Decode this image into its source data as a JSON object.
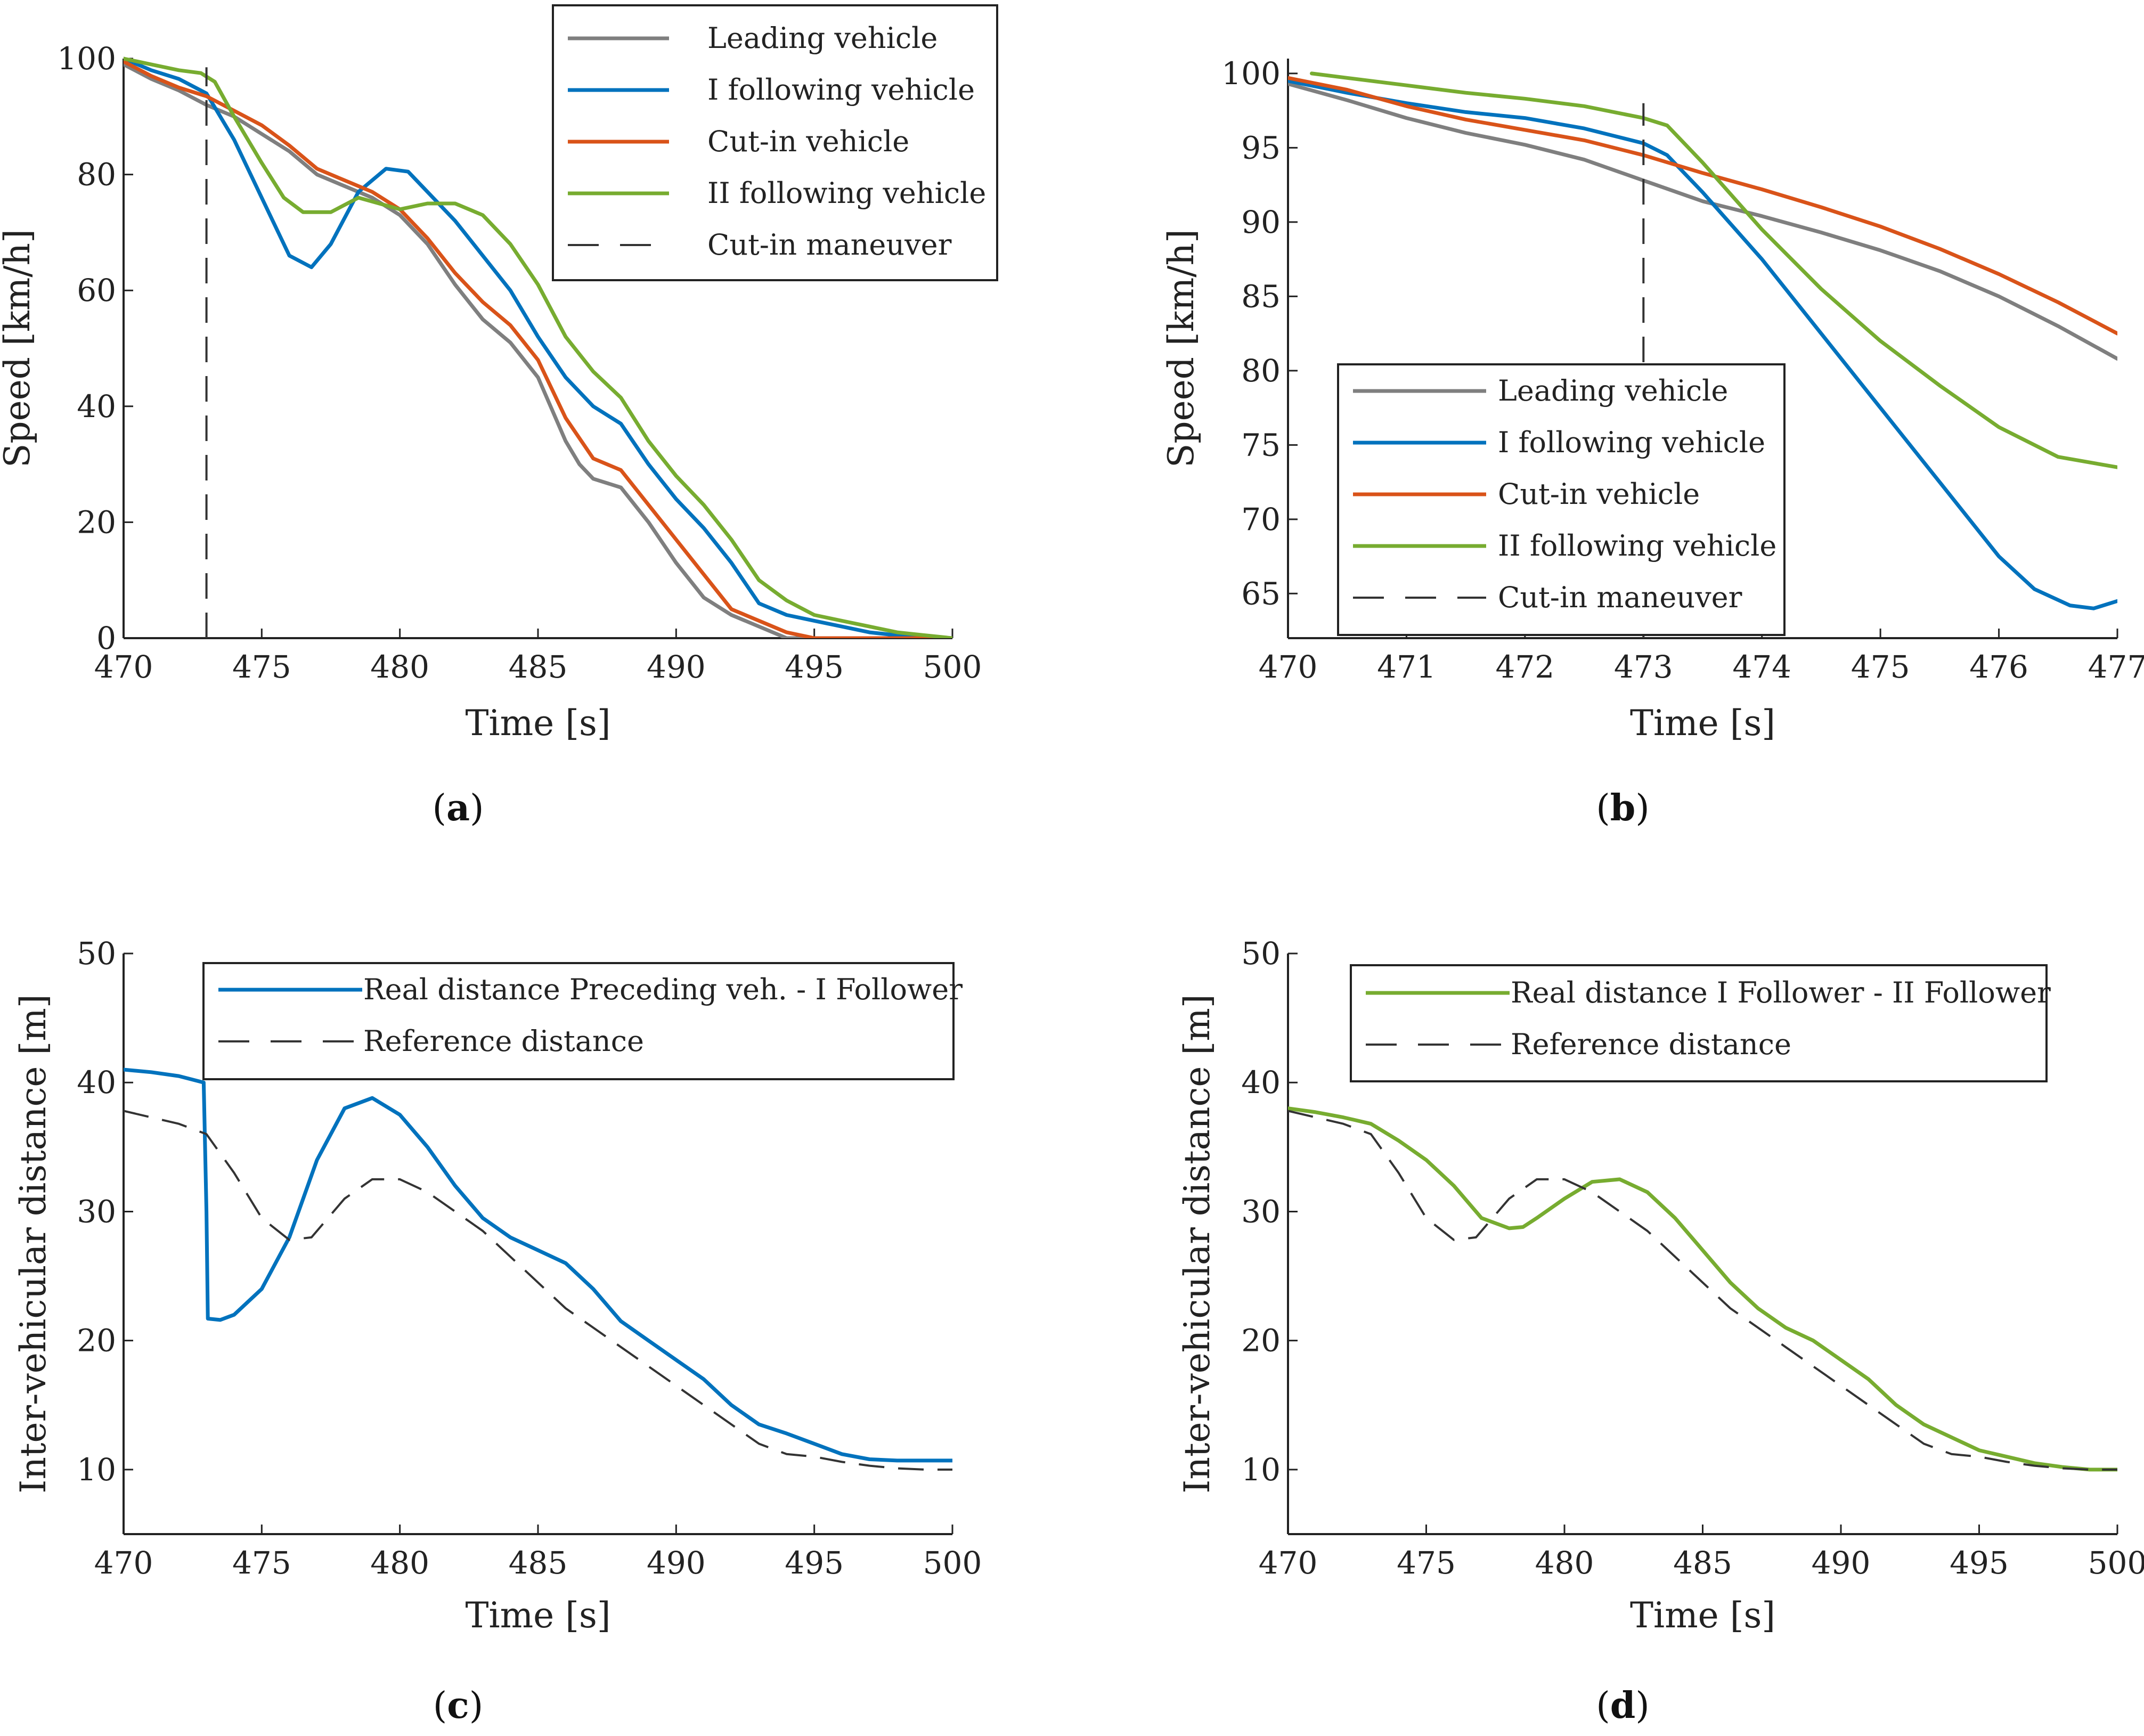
{
  "colors": {
    "leading": "#7f7f7f",
    "follower1": "#0072bd",
    "cutin": "#d95319",
    "follower2": "#77ac30",
    "dashed": "#333333"
  },
  "chart_data": [
    {
      "type": "line",
      "panel": "a",
      "xlabel": "Time [s]",
      "ylabel": "Speed [km/h]",
      "xlim": [
        470,
        500
      ],
      "ylim": [
        0,
        100
      ],
      "xticks": [
        470,
        475,
        480,
        485,
        490,
        495,
        500
      ],
      "yticks": [
        0,
        20,
        40,
        60,
        80,
        100
      ],
      "legend_position": "top-right",
      "series": [
        {
          "name": "Leading vehicle",
          "color_key": "leading",
          "dashed": false,
          "x": [
            470,
            471,
            472,
            473,
            474,
            475,
            476,
            477,
            478,
            479,
            480,
            481,
            482,
            483,
            484,
            485,
            486,
            486.5,
            487,
            488,
            489,
            490,
            491,
            492,
            493,
            494,
            495,
            497,
            500
          ],
          "y": [
            99,
            96.5,
            94.5,
            92,
            90,
            87,
            84,
            80,
            78,
            76,
            73,
            68,
            61,
            55,
            51,
            45,
            34,
            30,
            27.5,
            26,
            20,
            13,
            7,
            4,
            2,
            0,
            0,
            0,
            0
          ]
        },
        {
          "name": "I following vehicle",
          "color_key": "follower1",
          "dashed": false,
          "x": [
            470,
            471,
            472,
            473,
            474,
            475,
            476,
            476.8,
            477.5,
            478.5,
            479.5,
            480.3,
            481,
            482,
            483,
            484,
            485,
            486,
            487,
            488,
            489,
            490,
            491,
            492,
            493,
            494,
            495,
            496,
            497,
            498,
            499,
            500
          ],
          "y": [
            100,
            98,
            96.5,
            94,
            86,
            76,
            66,
            64,
            68,
            77,
            81,
            80.5,
            77,
            72,
            66,
            60,
            52,
            45,
            40,
            37,
            30,
            24,
            19,
            13,
            6,
            4,
            3,
            2,
            1,
            0.5,
            0,
            0
          ]
        },
        {
          "name": "Cut-in vehicle",
          "color_key": "cutin",
          "dashed": false,
          "x": [
            470,
            471,
            472,
            473,
            474,
            475,
            476,
            477,
            478,
            479,
            480,
            481,
            482,
            483,
            484,
            485,
            486,
            487,
            488,
            489,
            490,
            491,
            492,
            493,
            494,
            495,
            497,
            500
          ],
          "y": [
            99.5,
            97,
            95,
            93.5,
            91,
            88.5,
            85,
            81,
            79,
            77,
            74,
            69,
            63,
            58,
            54,
            48,
            38,
            31,
            29,
            23,
            17,
            11,
            5,
            3,
            1,
            0,
            0,
            0
          ]
        },
        {
          "name": "II following vehicle",
          "color_key": "follower2",
          "dashed": false,
          "x": [
            470,
            471,
            472,
            472.8,
            473.3,
            474,
            475,
            475.8,
            476.5,
            477.5,
            478.5,
            480,
            481,
            482,
            483,
            484,
            485,
            486,
            487,
            488,
            489,
            490,
            491,
            492,
            493,
            494,
            495,
            496,
            497,
            498,
            499,
            500
          ],
          "y": [
            100,
            99,
            98,
            97.5,
            96,
            90,
            82,
            76,
            73.5,
            73.5,
            76,
            74,
            75,
            75,
            73,
            68,
            61,
            52,
            46,
            41.5,
            34,
            28,
            23,
            17,
            10,
            6.5,
            4,
            3,
            2,
            1,
            0.5,
            0
          ]
        },
        {
          "name": "Cut-in maneuver",
          "color_key": "dashed",
          "dashed": true,
          "x": [
            473,
            473
          ],
          "y": [
            0,
            98.5
          ]
        }
      ]
    },
    {
      "type": "line",
      "panel": "b",
      "xlabel": "Time [s]",
      "ylabel": "Speed [km/h]",
      "xlim": [
        470,
        477
      ],
      "ylim": [
        62,
        101
      ],
      "xticks": [
        470,
        471,
        472,
        473,
        474,
        475,
        476,
        477
      ],
      "yticks": [
        65,
        70,
        75,
        80,
        85,
        90,
        95,
        100
      ],
      "legend_position": "bottom-left",
      "series": [
        {
          "name": "Leading vehicle",
          "color_key": "leading",
          "dashed": false,
          "x": [
            470,
            470.5,
            471,
            471.5,
            472,
            472.5,
            473,
            473.5,
            474,
            474.5,
            475,
            475.5,
            476,
            476.5,
            477
          ],
          "y": [
            99.3,
            98.2,
            97,
            96,
            95.2,
            94.2,
            92.8,
            91.4,
            90.4,
            89.3,
            88.1,
            86.7,
            85,
            83,
            80.8
          ]
        },
        {
          "name": "I following vehicle",
          "color_key": "follower1",
          "dashed": false,
          "x": [
            470,
            470.5,
            471,
            471.5,
            472,
            472.5,
            473,
            473.2,
            473.5,
            474,
            474.5,
            475,
            475.5,
            476,
            476.3,
            476.6,
            476.8,
            477
          ],
          "y": [
            99.5,
            98.7,
            98,
            97.4,
            97,
            96.3,
            95.3,
            94.5,
            92,
            87.5,
            82.5,
            77.5,
            72.5,
            67.5,
            65.3,
            64.2,
            64,
            64.5
          ]
        },
        {
          "name": "Cut-in vehicle",
          "color_key": "cutin",
          "dashed": false,
          "x": [
            470,
            470.5,
            471,
            471.5,
            472,
            472.5,
            473,
            473.5,
            474,
            474.5,
            475,
            475.5,
            476,
            476.5,
            477
          ],
          "y": [
            99.7,
            98.9,
            97.8,
            96.9,
            96.2,
            95.5,
            94.5,
            93.3,
            92.2,
            91,
            89.7,
            88.2,
            86.5,
            84.6,
            82.5
          ]
        },
        {
          "name": "II following vehicle",
          "color_key": "follower2",
          "dashed": false,
          "x": [
            470.2,
            470.5,
            471,
            471.5,
            472,
            472.5,
            473,
            473.2,
            473.5,
            474,
            474.5,
            475,
            475.5,
            476,
            476.5,
            477
          ],
          "y": [
            100,
            99.7,
            99.2,
            98.7,
            98.3,
            97.8,
            97,
            96.5,
            94,
            89.5,
            85.5,
            82,
            79,
            76.2,
            74.2,
            73.5
          ]
        },
        {
          "name": "Cut-in maneuver",
          "color_key": "dashed",
          "dashed": true,
          "x": [
            473,
            473
          ],
          "y": [
            62,
            98
          ]
        }
      ]
    },
    {
      "type": "line",
      "panel": "c",
      "xlabel": "Time [s]",
      "ylabel": "Inter-vehicular distance [m]",
      "xlim": [
        470,
        500
      ],
      "ylim": [
        5,
        50
      ],
      "xticks": [
        470,
        475,
        480,
        485,
        490,
        495,
        500
      ],
      "yticks": [
        10,
        20,
        30,
        40,
        50
      ],
      "legend_position": "top-right",
      "series": [
        {
          "name": "Real distance Preceding veh. - I Follower",
          "color_key": "follower1",
          "dashed": false,
          "x": [
            470,
            471,
            472,
            472.9,
            473,
            473.05,
            473.5,
            474,
            475,
            476,
            477,
            478,
            479,
            480,
            481,
            482,
            483,
            484,
            485,
            486,
            487,
            488,
            489,
            490,
            491,
            492,
            493,
            494,
            495,
            496,
            497,
            498,
            499,
            500
          ],
          "y": [
            41,
            40.8,
            40.5,
            40,
            30,
            21.7,
            21.6,
            22,
            24,
            28,
            34,
            38,
            38.8,
            37.5,
            35,
            32,
            29.5,
            28,
            27,
            26,
            24,
            21.5,
            20,
            18.5,
            17,
            15,
            13.5,
            12.8,
            12,
            11.2,
            10.8,
            10.7,
            10.7,
            10.7
          ]
        },
        {
          "name": "Reference distance",
          "color_key": "dashed",
          "dashed": true,
          "x": [
            470,
            471,
            472,
            473,
            474,
            475,
            476,
            476.8,
            478,
            479,
            480,
            481,
            482,
            483,
            484,
            485,
            486,
            487,
            488,
            489,
            490,
            491,
            492,
            493,
            494,
            495,
            496,
            497,
            498,
            499,
            500
          ],
          "y": [
            37.8,
            37.3,
            36.8,
            36,
            33,
            29.5,
            27.8,
            28,
            31,
            32.5,
            32.5,
            31.5,
            30,
            28.5,
            26.5,
            24.5,
            22.5,
            21,
            19.5,
            18,
            16.5,
            15,
            13.5,
            12,
            11.2,
            11,
            10.6,
            10.3,
            10.1,
            10,
            10
          ]
        }
      ]
    },
    {
      "type": "line",
      "panel": "d",
      "xlabel": "Time [s]",
      "ylabel": "Inter-vehicular distance [m]",
      "xlim": [
        470,
        500
      ],
      "ylim": [
        5,
        50
      ],
      "xticks": [
        470,
        475,
        480,
        485,
        490,
        495,
        500
      ],
      "yticks": [
        10,
        20,
        30,
        40,
        50
      ],
      "legend_position": "top-right",
      "series": [
        {
          "name": "Real distance I Follower - II Follower",
          "color_key": "follower2",
          "dashed": false,
          "x": [
            470,
            471,
            472,
            473,
            474,
            475,
            476,
            477,
            478,
            478.5,
            479,
            480,
            481,
            482,
            483,
            484,
            485,
            486,
            487,
            488,
            489,
            490,
            491,
            492,
            493,
            494,
            495,
            496,
            497,
            498,
            499,
            500
          ],
          "y": [
            38,
            37.7,
            37.3,
            36.8,
            35.5,
            34,
            32,
            29.5,
            28.7,
            28.8,
            29.5,
            31,
            32.3,
            32.5,
            31.5,
            29.5,
            27,
            24.5,
            22.5,
            21,
            20,
            18.5,
            17,
            15,
            13.5,
            12.5,
            11.5,
            11,
            10.5,
            10.2,
            10,
            10
          ]
        },
        {
          "name": "Reference distance",
          "color_key": "dashed",
          "dashed": true,
          "x": [
            470,
            471,
            472,
            473,
            474,
            475,
            476,
            476.8,
            478,
            479,
            480,
            481,
            482,
            483,
            484,
            485,
            486,
            487,
            488,
            489,
            490,
            491,
            492,
            493,
            494,
            495,
            496,
            497,
            498,
            499,
            500
          ],
          "y": [
            37.8,
            37.3,
            36.8,
            36,
            33,
            29.5,
            27.8,
            28,
            31,
            32.5,
            32.5,
            31.5,
            30,
            28.5,
            26.5,
            24.5,
            22.5,
            21,
            19.5,
            18,
            16.5,
            15,
            13.5,
            12,
            11.2,
            11,
            10.6,
            10.3,
            10.1,
            10,
            10
          ]
        }
      ]
    }
  ],
  "panel_labels": [
    {
      "open": "(",
      "letter": "a",
      "close": ")"
    },
    {
      "open": "(",
      "letter": "b",
      "close": ")"
    },
    {
      "open": "(",
      "letter": "c",
      "close": ")"
    },
    {
      "open": "(",
      "letter": "d",
      "close": ")"
    }
  ]
}
